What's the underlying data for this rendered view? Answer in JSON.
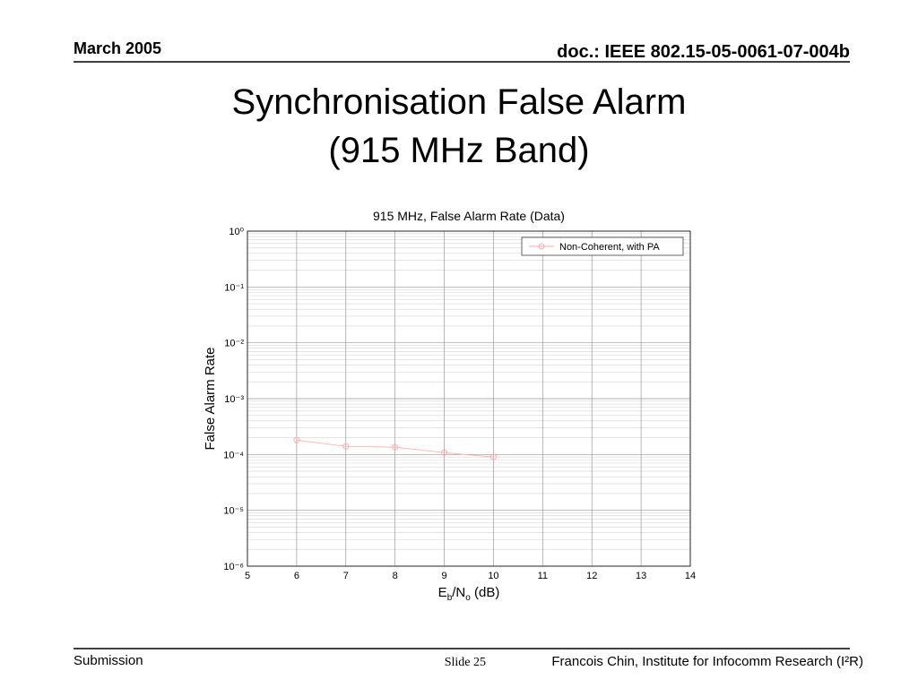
{
  "header": {
    "date": "March 2005",
    "doc": "doc.: IEEE 802.15-05-0061-07-004b"
  },
  "title": [
    "Synchronisation False Alarm",
    "(915 MHz Band)"
  ],
  "footer": {
    "left": "Submission",
    "slide": "Slide 25",
    "author": "Francois Chin, Institute for Infocomm Research (I²R)"
  },
  "chart_data": {
    "type": "line",
    "title": "915 MHz, False Alarm Rate (Data)",
    "xlabel": [
      "E",
      "b",
      "/N",
      "o",
      " (dB)"
    ],
    "ylabel": "False Alarm Rate",
    "x": [
      6,
      7,
      8,
      9,
      10
    ],
    "series": [
      {
        "name": "Non-Coherent, with PA",
        "color": "#ffaaaa",
        "marker": "circle",
        "values": [
          0.000181,
          0.00014,
          0.000135,
          0.000108,
          9e-05
        ]
      }
    ],
    "xlim": [
      5,
      14
    ],
    "xticks": [
      5,
      6,
      7,
      8,
      9,
      10,
      11,
      12,
      13,
      14
    ],
    "ylim": [
      1e-06,
      1
    ],
    "yscale": "log",
    "yticks": [
      {
        "value": 1e-06,
        "label": "10⁻⁶"
      },
      {
        "value": 1e-05,
        "label": "10⁻⁵"
      },
      {
        "value": 0.0001,
        "label": "10⁻⁴"
      },
      {
        "value": 0.001,
        "label": "10⁻³"
      },
      {
        "value": 0.01,
        "label": "10⁻²"
      },
      {
        "value": 0.1,
        "label": "10⁻¹"
      },
      {
        "value": 1,
        "label": "10⁰"
      }
    ],
    "grid": true,
    "legend": "upper right"
  }
}
